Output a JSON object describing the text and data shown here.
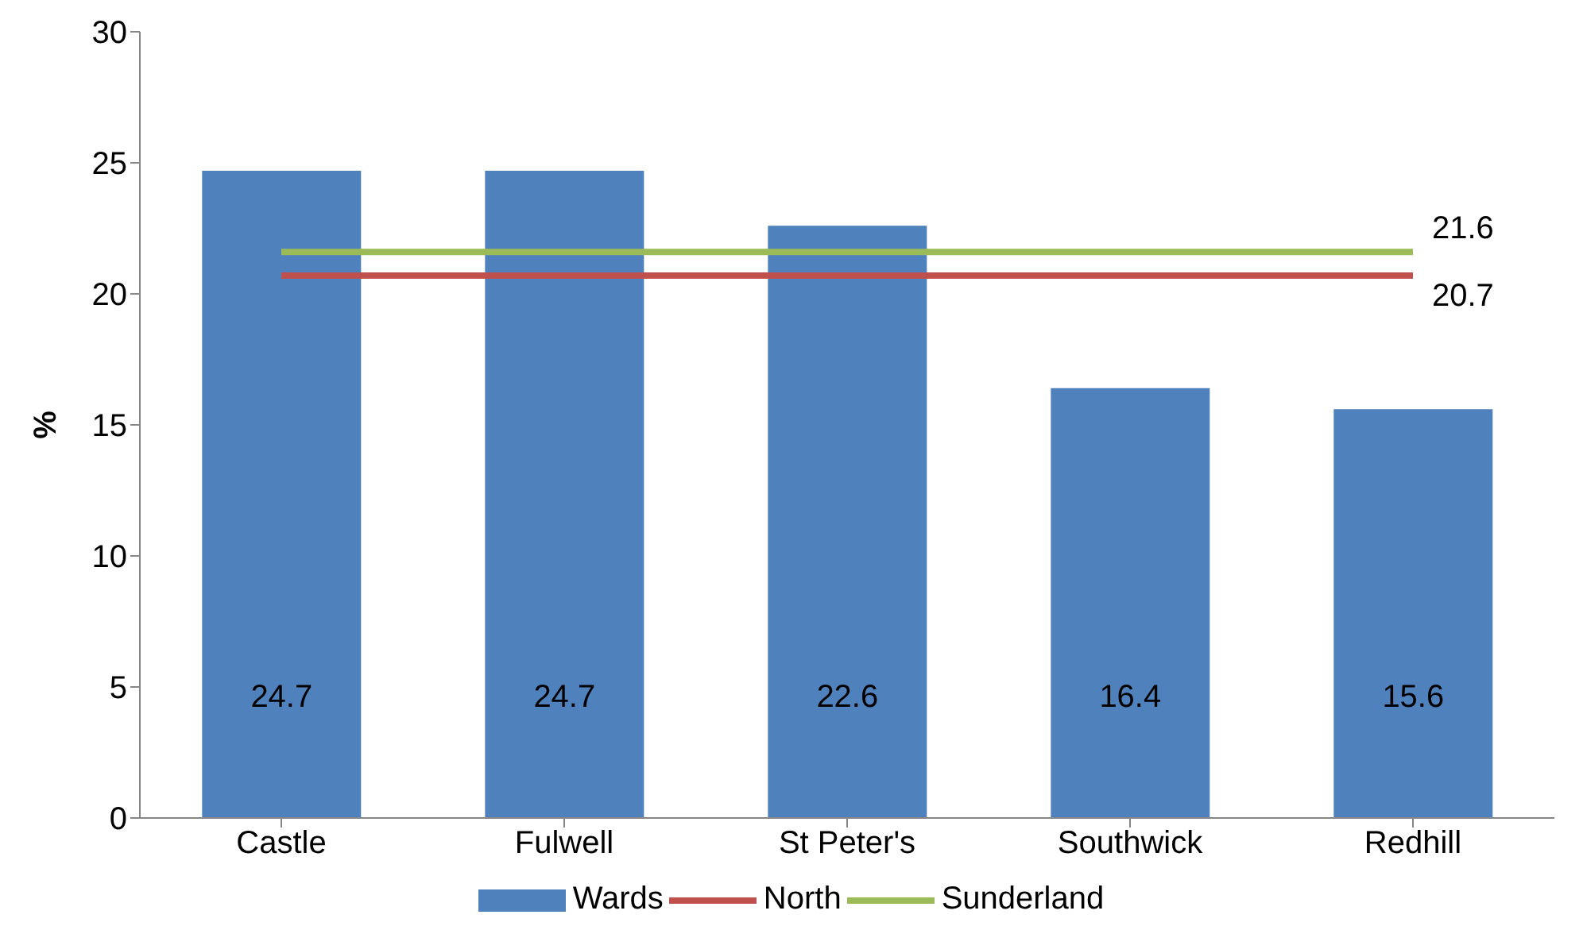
{
  "chart_data": {
    "type": "bar",
    "ylabel": "%",
    "categories": [
      "Castle",
      "Fulwell",
      "St Peter's",
      "Southwick",
      "Redhill"
    ],
    "series": [
      {
        "name": "Wards",
        "color": "#4f81bd",
        "values": [
          24.7,
          24.7,
          22.6,
          16.4,
          15.6
        ]
      },
      {
        "name": "North",
        "type": "line",
        "color": "#c0504d",
        "values": [
          20.7,
          20.7,
          20.7,
          20.7,
          20.7
        ],
        "value_labels": [
          null,
          null,
          null,
          null,
          "20.7"
        ]
      },
      {
        "name": "Sunderland",
        "type": "line",
        "color": "#9bbb59",
        "values": [
          21.6,
          21.6,
          21.6,
          21.6,
          21.6
        ],
        "value_labels": [
          null,
          null,
          null,
          null,
          "21.6"
        ]
      }
    ],
    "data_labels": true,
    "marker": "none",
    "ylim": [
      0,
      30
    ],
    "yticks": [
      0,
      5,
      10,
      15,
      20,
      25,
      30
    ],
    "grid": false,
    "legend": "bottom"
  }
}
